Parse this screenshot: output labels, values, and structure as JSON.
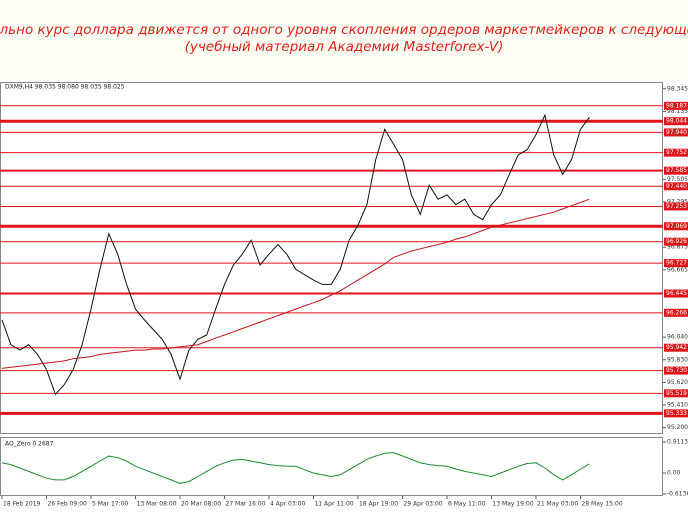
{
  "header": {
    "title": "Реально курс доллара движется от одного уровня скопления ордеров маркетмейкеров к следующему",
    "subtitle": "(учебный материал Академии Masterforex-V)"
  },
  "chart_data": [
    {
      "type": "line",
      "title": "DXM9,H4 98.035 98.080 98.035 98.025",
      "categories": [
        "18 Feb 2019",
        null,
        null,
        null,
        null,
        "26 Feb 09:00",
        null,
        null,
        null,
        null,
        "5 Mar 17:00",
        null,
        null,
        null,
        null,
        "13 Mar 08:00",
        null,
        null,
        null,
        null,
        "20 Mar 08:00",
        null,
        null,
        null,
        null,
        "27 Mar 16:00",
        null,
        null,
        null,
        null,
        "4 Apr 03:00",
        null,
        null,
        null,
        null,
        "11 Apr 11:00",
        null,
        null,
        null,
        null,
        "18 Apr 19:00",
        null,
        null,
        null,
        null,
        "29 Apr 03:00",
        null,
        null,
        null,
        null,
        "6 May 11:00",
        null,
        null,
        null,
        null,
        "13 May 19:00",
        null,
        null,
        null,
        null,
        "21 May 03:00",
        null,
        null,
        null,
        null,
        "28 May 15:00",
        null
      ],
      "series": [
        {
          "color": "#111111",
          "values": [
            96.2,
            95.97,
            95.92,
            95.97,
            95.88,
            95.74,
            95.51,
            95.6,
            95.74,
            95.97,
            96.3,
            96.67,
            97.0,
            96.81,
            96.53,
            96.3,
            96.2,
            96.11,
            96.02,
            95.88,
            95.65,
            95.92,
            96.02,
            96.06,
            96.3,
            96.53,
            96.71,
            96.81,
            96.94,
            96.71,
            96.81,
            96.9,
            96.81,
            96.67,
            96.62,
            96.57,
            96.53,
            96.53,
            96.67,
            96.94,
            97.08,
            97.27,
            97.69,
            97.97,
            97.83,
            97.69,
            97.36,
            97.18,
            97.45,
            97.32,
            97.36,
            97.27,
            97.32,
            97.18,
            97.13,
            97.27,
            97.36,
            97.55,
            97.73,
            97.78,
            97.92,
            98.1,
            97.73,
            97.55,
            97.69,
            97.97,
            98.08
          ]
        },
        {
          "color": "#c0161b",
          "values": [
            95.75,
            95.76,
            95.77,
            95.78,
            95.79,
            95.8,
            95.81,
            95.82,
            95.84,
            95.85,
            95.86,
            95.88,
            95.89,
            95.9,
            95.91,
            95.92,
            95.92,
            95.93,
            95.93,
            95.94,
            95.95,
            95.96,
            95.97,
            96.0,
            96.03,
            96.06,
            96.09,
            96.12,
            96.15,
            96.18,
            96.21,
            96.24,
            96.27,
            96.3,
            96.33,
            96.36,
            96.39,
            96.43,
            96.47,
            96.52,
            96.57,
            96.62,
            96.67,
            96.72,
            96.78,
            96.81,
            96.84,
            96.86,
            96.88,
            96.9,
            96.92,
            96.95,
            96.97,
            97.0,
            97.03,
            97.06,
            97.08,
            97.1,
            97.12,
            97.14,
            97.16,
            97.18,
            97.2,
            97.23,
            97.26,
            97.29,
            97.32
          ]
        }
      ],
      "ylim": [
        95.16,
        98.38
      ],
      "yticks": [
        98.345,
        98.135,
        97.505,
        97.295,
        96.875,
        96.665,
        {
          "value": 96.04,
          "label": "96.040"
        },
        {
          "value": 95.83,
          "label": "95.830"
        },
        {
          "value": 95.62,
          "label": "95.620"
        },
        {
          "value": 95.41,
          "label": "95.410"
        },
        {
          "value": 95.2,
          "label": "95.200"
        }
      ],
      "levels": [
        98.187,
        98.044,
        {
          "value": 97.94,
          "label": "97.940"
        },
        97.752,
        97.585,
        {
          "value": 97.44,
          "label": "97.440"
        },
        97.253,
        97.069,
        96.926,
        96.727,
        96.445,
        96.266,
        95.942,
        {
          "value": 95.73,
          "label": "95.730"
        },
        95.519,
        95.333
      ],
      "level_widths": [
        1,
        3,
        1,
        1,
        2,
        1,
        1,
        3,
        1,
        1,
        2,
        1,
        1,
        1,
        1,
        3
      ],
      "level_color": "#e0141b"
    },
    {
      "type": "line",
      "title": "AO_Zero 0.2687",
      "series": [
        {
          "color": "#1f8a2e",
          "values": [
            0.3,
            0.25,
            0.15,
            0.05,
            -0.05,
            -0.15,
            -0.2,
            -0.2,
            -0.1,
            0.05,
            0.2,
            0.35,
            0.5,
            0.45,
            0.35,
            0.2,
            0.1,
            0.0,
            -0.1,
            -0.2,
            -0.3,
            -0.25,
            -0.1,
            0.05,
            0.2,
            0.3,
            0.38,
            0.4,
            0.35,
            0.3,
            0.25,
            0.22,
            0.2,
            0.2,
            0.1,
            0.0,
            -0.05,
            -0.1,
            -0.05,
            0.1,
            0.25,
            0.4,
            0.5,
            0.58,
            0.6,
            0.5,
            0.4,
            0.3,
            0.25,
            0.22,
            0.2,
            0.12,
            0.05,
            0.0,
            -0.05,
            -0.1,
            0.0,
            0.1,
            0.2,
            0.28,
            0.3,
            0.15,
            -0.05,
            -0.2,
            -0.05,
            0.12,
            0.27
          ]
        }
      ],
      "ylim": [
        -0.6136,
        0.9113
      ],
      "yticks": [
        0.9113,
        {
          "value": 0,
          "label": "0.00"
        },
        -0.6136
      ]
    }
  ]
}
